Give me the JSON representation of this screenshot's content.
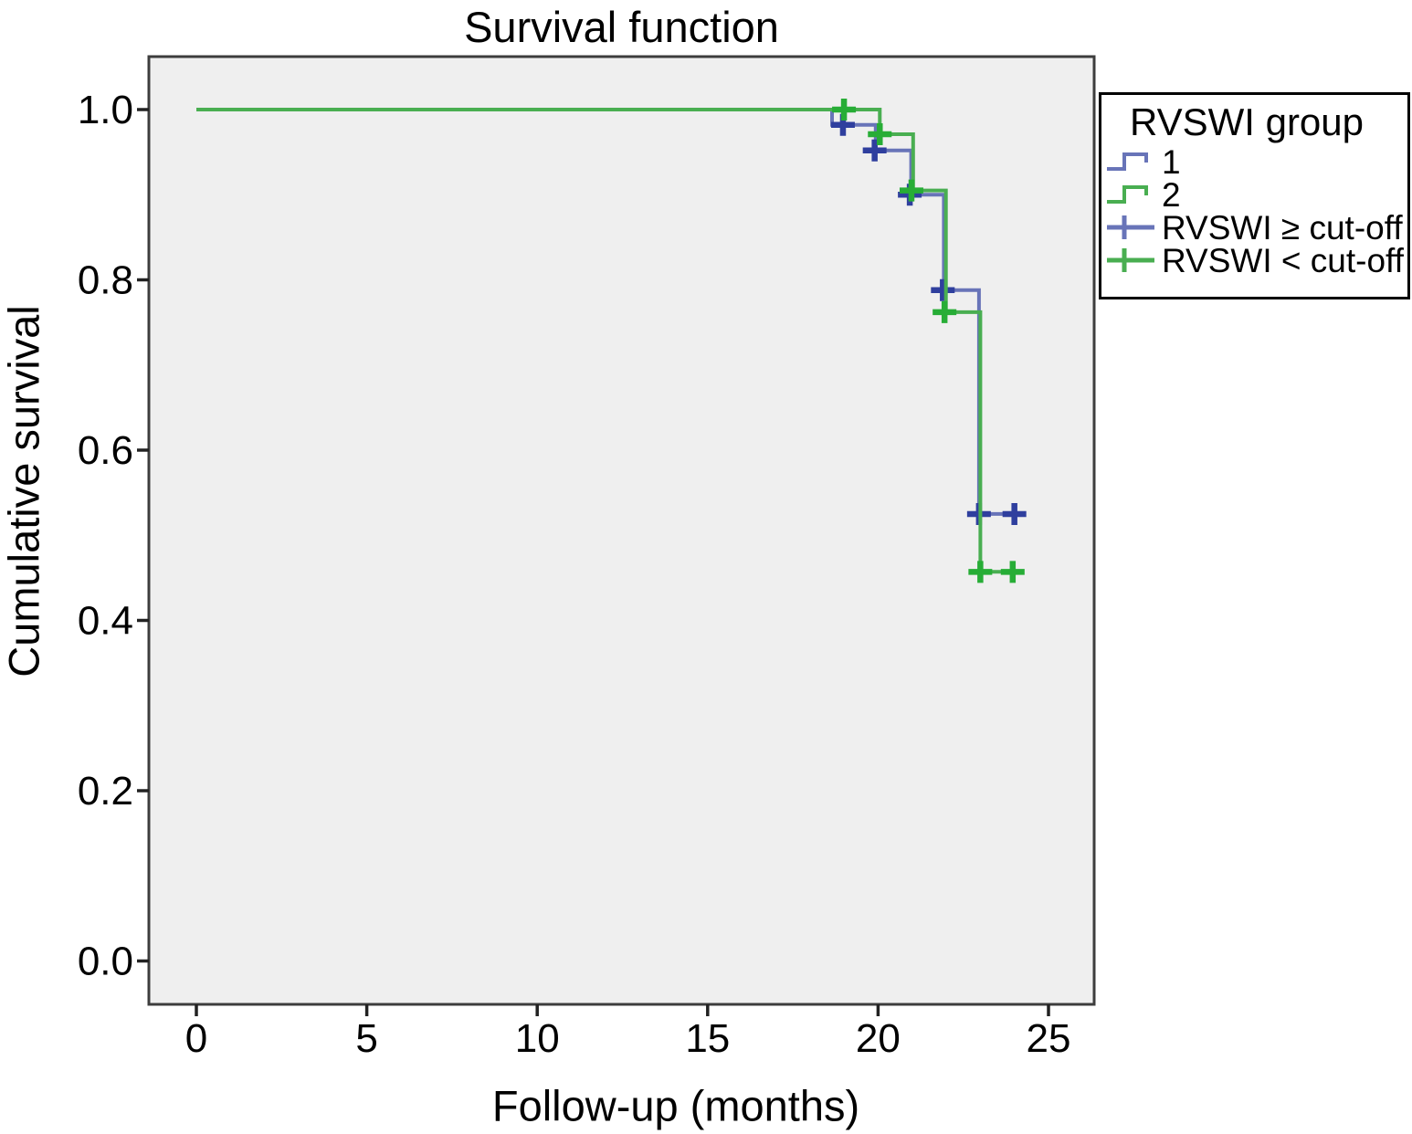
{
  "chart_data": {
    "type": "line",
    "subtype": "kaplan-meier-step",
    "title": "Survival function",
    "xlabel": "Follow-up (months)",
    "ylabel": "Cumulative survival",
    "plot_background": "#efefef",
    "frame_color": "#3d3d3d",
    "tick_color": "#222222",
    "x_axis": {
      "range": [
        0,
        25
      ],
      "tick_values": [
        0,
        5,
        10,
        15,
        20,
        25
      ],
      "tick_labels": [
        "0",
        "5",
        "10",
        "15",
        "20",
        "25"
      ]
    },
    "y_axis": {
      "range": [
        0.0,
        1.0
      ],
      "tick_values": [
        0.0,
        0.2,
        0.4,
        0.6,
        0.8,
        1.0
      ],
      "tick_labels": [
        "0.0",
        "0.2",
        "0.4",
        "0.6",
        "0.8",
        "1.0"
      ]
    },
    "grid": false,
    "legend": {
      "title": "RVSWI group",
      "position": "upper-right-outside",
      "entries": [
        {
          "label": "1",
          "glyph": "step-line",
          "color_ref": "series.0.line_color"
        },
        {
          "label": "2",
          "glyph": "step-line",
          "color_ref": "series.1.line_color"
        },
        {
          "label": "RVSWI ≥ cut-off",
          "glyph": "censor-plus",
          "color_ref": "series.0.line_color"
        },
        {
          "label": "RVSWI < cut-off",
          "glyph": "censor-plus",
          "color_ref": "series.1.line_color"
        }
      ]
    },
    "series": [
      {
        "name": "1",
        "description": "RVSWI ≥ cut-off",
        "line_color": "#6874b8",
        "mark_color": "#2f3f9e",
        "steps": [
          [
            0,
            1.0
          ],
          [
            18.65,
            1.0
          ],
          [
            18.65,
            0.982
          ],
          [
            19.93,
            0.982
          ],
          [
            19.93,
            0.952
          ],
          [
            20.97,
            0.952
          ],
          [
            20.97,
            0.9
          ],
          [
            21.93,
            0.9
          ],
          [
            21.93,
            0.788
          ],
          [
            22.96,
            0.788
          ],
          [
            22.96,
            0.525
          ],
          [
            24.2,
            0.525
          ]
        ],
        "censored": [
          [
            18.97,
            0.982
          ],
          [
            19.9,
            0.952
          ],
          [
            20.93,
            0.9
          ],
          [
            21.9,
            0.788
          ],
          [
            22.96,
            0.525
          ],
          [
            24.0,
            0.525
          ]
        ]
      },
      {
        "name": "2",
        "description": "RVSWI < cut-off",
        "line_color": "#49ae51",
        "mark_color": "#27ad36",
        "steps": [
          [
            0,
            1.0
          ],
          [
            20.05,
            1.0
          ],
          [
            20.05,
            0.971
          ],
          [
            21.03,
            0.971
          ],
          [
            21.03,
            0.905
          ],
          [
            21.99,
            0.905
          ],
          [
            21.99,
            0.762
          ],
          [
            23.0,
            0.762
          ],
          [
            23.0,
            0.457
          ],
          [
            24.15,
            0.457
          ]
        ],
        "censored": [
          [
            19.0,
            1.0
          ],
          [
            20.05,
            0.971
          ],
          [
            20.98,
            0.905
          ],
          [
            21.95,
            0.762
          ],
          [
            23.0,
            0.457
          ],
          [
            23.95,
            0.457
          ]
        ]
      }
    ]
  }
}
